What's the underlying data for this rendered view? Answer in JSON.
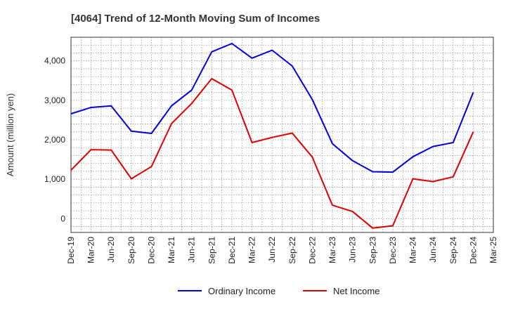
{
  "chart_data": {
    "type": "line",
    "title": "[4064]  Trend of 12-Month Moving Sum of Incomes",
    "xlabel": "",
    "ylabel": "Amount (million yen)",
    "categories": [
      "Dec-19",
      "Mar-20",
      "Jun-20",
      "Sep-20",
      "Dec-20",
      "Mar-21",
      "Jun-21",
      "Sep-21",
      "Dec-21",
      "Mar-22",
      "Jun-22",
      "Sep-22",
      "Dec-22",
      "Mar-23",
      "Jun-23",
      "Sep-23",
      "Dec-23",
      "Mar-24",
      "Jun-24",
      "Sep-24",
      "Dec-24",
      "Mar-25"
    ],
    "ylim": [
      -350,
      4600
    ],
    "yticks": [
      0,
      1000,
      2000,
      3000,
      4000
    ],
    "ytick_labels": [
      "0",
      "1,000",
      "2,000",
      "3,000",
      "4,000"
    ],
    "grid": true,
    "legend_position": "bottom",
    "series": [
      {
        "name": "Ordinary Income",
        "color": "#0000dd",
        "values": [
          2660,
          2820,
          2860,
          2220,
          2160,
          2860,
          3260,
          4230,
          4440,
          4070,
          4270,
          3870,
          3020,
          1900,
          1470,
          1190,
          1180,
          1570,
          1830,
          1930,
          3200,
          null
        ]
      },
      {
        "name": "Net Income",
        "color": "#dd0000",
        "values": [
          1230,
          1750,
          1740,
          1010,
          1320,
          2410,
          2920,
          3550,
          3260,
          1930,
          2060,
          2170,
          1560,
          340,
          180,
          -240,
          -180,
          1010,
          940,
          1060,
          2200,
          null
        ]
      }
    ]
  }
}
